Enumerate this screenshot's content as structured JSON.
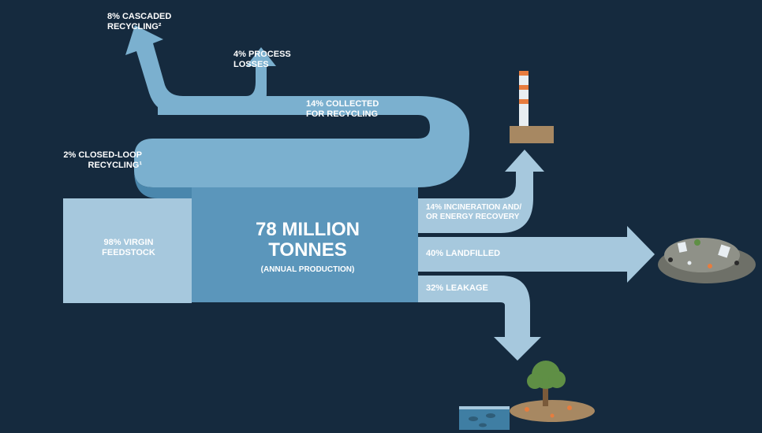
{
  "diagram": {
    "type": "sankey-infographic",
    "background_color": "#152a3e",
    "label_color": "#ffffff",
    "label_fontsize": 11,
    "colors": {
      "flow_light": "#a6c8dd",
      "flow_medium": "#7bb0cf",
      "flow_dark": "#5b96bb",
      "flow_deep": "#4a87ad",
      "brown": "#a78862",
      "orange": "#e77c3e",
      "white": "#e8eef2",
      "green": "#5f8f45",
      "pile_dark": "#6e7068",
      "pile_light": "#8f9188",
      "water": "#3f7ea3"
    },
    "main": {
      "title_line1": "78 MILLION",
      "title_line2": "TONNES",
      "subtitle": "(ANNUAL PRODUCTION)"
    },
    "labels": {
      "cascaded": "8% CASCADED RECYCLING²",
      "process_loss": "4% PROCESS LOSSES",
      "collected": "14% COLLECTED FOR RECYCLING",
      "closed_loop": "2% CLOSED-LOOP RECYCLING¹",
      "feedstock": "98% VIRGIN FEEDSTOCK",
      "incineration": "14% INCINERATION AND/OR ENERGY RECOVERY",
      "landfilled": "40% LANDFILLED",
      "leakage": "32% LEAKAGE"
    }
  }
}
